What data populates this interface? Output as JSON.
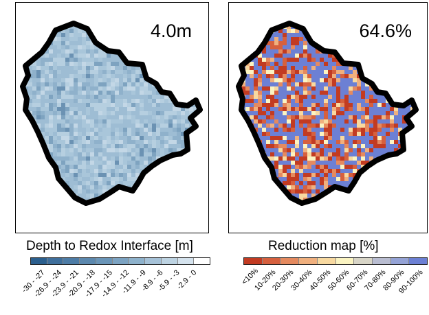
{
  "left_panel": {
    "value_label": "4.0m",
    "legend_title": "Depth to Redox Interface [m]",
    "colorbar": {
      "colors": [
        "#2b5f8e",
        "#3f6f9c",
        "#4d7ca6",
        "#5b88ae",
        "#6a95b8",
        "#7ca3c2",
        "#8eb2cc",
        "#a6c2d8",
        "#bdd3e2",
        "#d5e3ee",
        "#ffffff"
      ],
      "labels": [
        "-30 - -27",
        "-26.9 - -24",
        "-23.9 - -21",
        "-20.9 - -18",
        "-17.9 - -15",
        "-14.9 - -12",
        "-11.9 - -9",
        "-8.9 - -6",
        "-5.9 - -3",
        "-2.9 - 0"
      ]
    },
    "map_colors": [
      "#9ebdd4",
      "#a9c6da",
      "#b6cfe0",
      "#8fb1cb",
      "#c3d7e6",
      "#7ea3c0",
      "#6b92b3"
    ]
  },
  "right_panel": {
    "value_label": "64.6%",
    "legend_title": "Reduction map [%]",
    "colorbar": {
      "colors": [
        "#c23b22",
        "#d6603e",
        "#e58a5f",
        "#f0b07e",
        "#f8d9a0",
        "#fbf4c2",
        "#d8d5c7",
        "#b9bdd1",
        "#95a3d6",
        "#6c80d4"
      ],
      "labels": [
        "<10%",
        "10-20%",
        "20-30%",
        "30-40%",
        "40-50%",
        "50-60%",
        "60-70%",
        "70-80%",
        "80-90%",
        "90-100%"
      ]
    },
    "map_colors": [
      "#c23b22",
      "#d6603e",
      "#e58a5f",
      "#f0b07e",
      "#f8d9a0",
      "#fbf4c2",
      "#6c80d4"
    ]
  }
}
